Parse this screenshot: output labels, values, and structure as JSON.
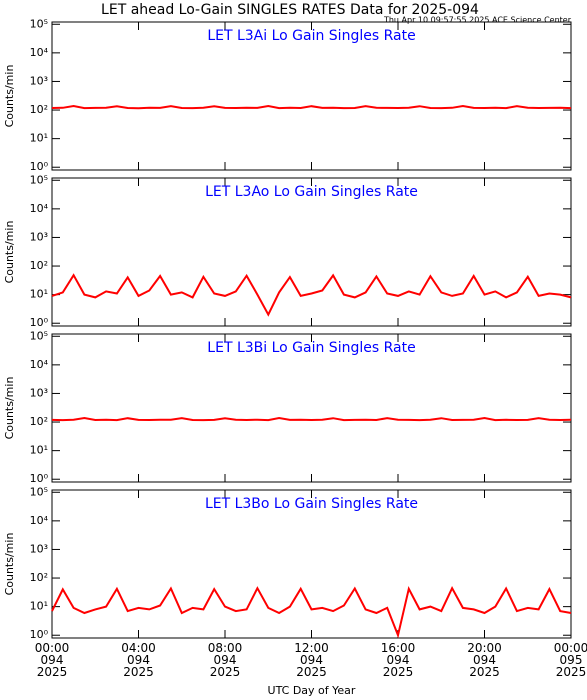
{
  "title": "LET ahead Lo-Gain SINGLES RATES Data for 2025-094",
  "subtitle": "Thu Apr 10 09:57:55 2025 ACE Science Center",
  "chart_data": [
    {
      "type": "line",
      "title": "LET L3Ai Lo Gain Singles Rate",
      "ylabel": "Counts/min",
      "log_y": true,
      "xlim": [
        0,
        24
      ],
      "ylim": [
        0.8,
        120000
      ],
      "yticks": [
        {
          "value": 1,
          "label": "10⁰"
        },
        {
          "value": 10,
          "label": "10¹"
        },
        {
          "value": 100,
          "label": "10²"
        },
        {
          "value": 1000,
          "label": "10³"
        },
        {
          "value": 10000,
          "label": "10⁴"
        },
        {
          "value": 100000,
          "label": "10⁵"
        }
      ],
      "x": [
        0,
        0.5,
        1,
        1.5,
        2,
        2.5,
        3,
        3.5,
        4,
        4.5,
        5,
        5.5,
        6,
        6.5,
        7,
        7.5,
        8,
        8.5,
        9,
        9.5,
        10,
        10.5,
        11,
        11.5,
        12,
        12.5,
        13,
        13.5,
        14,
        14.5,
        15,
        15.5,
        16,
        16.5,
        17,
        17.5,
        18,
        18.5,
        19,
        19.5,
        20,
        20.5,
        21,
        21.5,
        22,
        22.5,
        23,
        23.5,
        24
      ],
      "series": [
        {
          "color": "#ff0000",
          "values": [
            118,
            120,
            138,
            117,
            119,
            121,
            135,
            118,
            116,
            120,
            119,
            137,
            118,
            117,
            121,
            136,
            119,
            118,
            120,
            119,
            138,
            117,
            120,
            118,
            136,
            119,
            121,
            117,
            118,
            137,
            120,
            119,
            118,
            121,
            136,
            118,
            117,
            120,
            138,
            119,
            118,
            121,
            117,
            137,
            120,
            118,
            119,
            121,
            117
          ]
        }
      ]
    },
    {
      "type": "line",
      "title": "LET L3Ao Lo Gain Singles Rate",
      "ylabel": "Counts/min",
      "log_y": true,
      "xlim": [
        0,
        24
      ],
      "ylim": [
        0.8,
        120000
      ],
      "yticks": [
        {
          "value": 1,
          "label": "10⁰"
        },
        {
          "value": 10,
          "label": "10¹"
        },
        {
          "value": 100,
          "label": "10²"
        },
        {
          "value": 1000,
          "label": "10³"
        },
        {
          "value": 10000,
          "label": "10⁴"
        },
        {
          "value": 100000,
          "label": "10⁵"
        }
      ],
      "x": [
        0,
        0.5,
        1,
        1.5,
        2,
        2.5,
        3,
        3.5,
        4,
        4.5,
        5,
        5.5,
        6,
        6.5,
        7,
        7.5,
        8,
        8.5,
        9,
        9.5,
        10,
        10.5,
        11,
        11.5,
        12,
        12.5,
        13,
        13.5,
        14,
        14.5,
        15,
        15.5,
        16,
        16.5,
        17,
        17.5,
        18,
        18.5,
        19,
        19.5,
        20,
        20.5,
        21,
        21.5,
        22,
        22.5,
        23,
        23.5,
        24
      ],
      "series": [
        {
          "color": "#ff0000",
          "values": [
            9,
            12,
            48,
            10,
            8,
            13,
            11,
            40,
            9,
            14,
            45,
            10,
            12,
            8,
            42,
            11,
            9,
            13,
            46,
            10,
            2,
            12,
            41,
            9,
            11,
            14,
            47,
            10,
            8,
            12,
            43,
            11,
            9,
            13,
            10,
            44,
            12,
            9,
            11,
            45,
            10,
            13,
            8,
            12,
            42,
            9,
            11,
            10,
            8
          ]
        }
      ]
    },
    {
      "type": "line",
      "title": "LET L3Bi Lo Gain Singles Rate",
      "ylabel": "Counts/min",
      "log_y": true,
      "xlim": [
        0,
        24
      ],
      "ylim": [
        0.8,
        120000
      ],
      "yticks": [
        {
          "value": 1,
          "label": "10⁰"
        },
        {
          "value": 10,
          "label": "10¹"
        },
        {
          "value": 100,
          "label": "10²"
        },
        {
          "value": 1000,
          "label": "10³"
        },
        {
          "value": 10000,
          "label": "10⁴"
        },
        {
          "value": 100000,
          "label": "10⁵"
        }
      ],
      "x": [
        0,
        0.5,
        1,
        1.5,
        2,
        2.5,
        3,
        3.5,
        4,
        4.5,
        5,
        5.5,
        6,
        6.5,
        7,
        7.5,
        8,
        8.5,
        9,
        9.5,
        10,
        10.5,
        11,
        11.5,
        12,
        12.5,
        13,
        13.5,
        14,
        14.5,
        15,
        15.5,
        16,
        16.5,
        17,
        17.5,
        18,
        18.5,
        19,
        19.5,
        20,
        20.5,
        21,
        21.5,
        22,
        22.5,
        23,
        23.5,
        24
      ],
      "series": [
        {
          "color": "#ff0000",
          "values": [
            119,
            117,
            121,
            139,
            118,
            120,
            117,
            136,
            119,
            118,
            121,
            120,
            137,
            118,
            117,
            119,
            135,
            120,
            118,
            121,
            117,
            138,
            119,
            120,
            118,
            121,
            136,
            117,
            119,
            120,
            118,
            137,
            121,
            119,
            117,
            120,
            136,
            118,
            119,
            121,
            138,
            117,
            120,
            118,
            119,
            137,
            121,
            118,
            120
          ]
        }
      ]
    },
    {
      "type": "line",
      "title": "LET L3Bo Lo Gain Singles Rate",
      "ylabel": "Counts/min",
      "xlabel": "UTC Day of Year",
      "log_y": true,
      "xlim": [
        0,
        24
      ],
      "ylim": [
        0.8,
        120000
      ],
      "xticks": [
        {
          "value": 0,
          "label": "00:00\n094\n2025"
        },
        {
          "value": 4,
          "label": "04:00\n094\n2025"
        },
        {
          "value": 8,
          "label": "08:00\n094\n2025"
        },
        {
          "value": 12,
          "label": "12:00\n094\n2025"
        },
        {
          "value": 16,
          "label": "16:00\n094\n2025"
        },
        {
          "value": 20,
          "label": "20:00\n094\n2025"
        },
        {
          "value": 24,
          "label": "00:00\n095\n2025"
        }
      ],
      "yticks": [
        {
          "value": 1,
          "label": "10⁰"
        },
        {
          "value": 10,
          "label": "10¹"
        },
        {
          "value": 100,
          "label": "10²"
        },
        {
          "value": 1000,
          "label": "10³"
        },
        {
          "value": 10000,
          "label": "10⁴"
        },
        {
          "value": 100000,
          "label": "10⁵"
        }
      ],
      "x": [
        0,
        0.5,
        1,
        1.5,
        2,
        2.5,
        3,
        3.5,
        4,
        4.5,
        5,
        5.5,
        6,
        6.5,
        7,
        7.5,
        8,
        8.5,
        9,
        9.5,
        10,
        10.5,
        11,
        11.5,
        12,
        12.5,
        13,
        13.5,
        14,
        14.5,
        15,
        15.5,
        16,
        16.5,
        17,
        17.5,
        18,
        18.5,
        19,
        19.5,
        20,
        20.5,
        21,
        21.5,
        22,
        22.5,
        23,
        23.5,
        24
      ],
      "series": [
        {
          "color": "#ff0000",
          "values": [
            7,
            40,
            9,
            6,
            8,
            10,
            42,
            7,
            9,
            8,
            11,
            43,
            6,
            9,
            8,
            41,
            10,
            7,
            8,
            44,
            9,
            6,
            10,
            42,
            8,
            9,
            7,
            11,
            43,
            8,
            6,
            9,
            1,
            42,
            8,
            10,
            7,
            44,
            9,
            8,
            6,
            10,
            43,
            7,
            9,
            8,
            41,
            7,
            6
          ]
        }
      ]
    }
  ]
}
